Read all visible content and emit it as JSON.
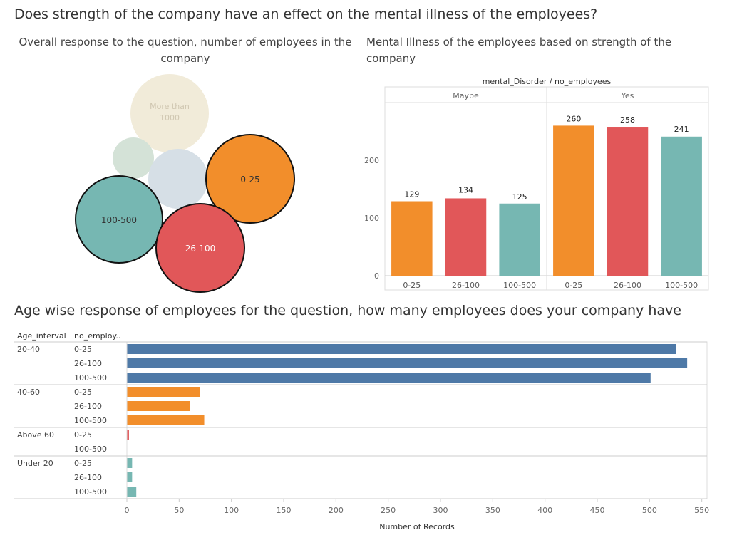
{
  "dashboard": {
    "title": "Does strength of the company have an effect on the mental illness of the employees?"
  },
  "bubble_chart": {
    "title_line1": "Overall response to the question, number of employees in the",
    "title_line2": "company"
  },
  "bar_chart": {
    "title_line1": "Mental Illness of the employees based on strength of the",
    "title_line2": "company"
  },
  "hbar_chart": {
    "title": "Age wise response of employees for the question, how many employees does your company have",
    "col_header_age": "Age_interval",
    "col_header_size": "no_employ.."
  },
  "colors": {
    "size_0_25": "#F28E2B",
    "size_26_100": "#E15759",
    "size_100_500": "#76B7B2",
    "size_more_1000": "#F1EBD9",
    "size_6_25_light": "#D4E2D7",
    "size_500_1000_light": "#D6DFE6",
    "age_20_40": "#4E79A7"
  },
  "chart_data": [
    {
      "type": "bubble",
      "bubbles": [
        {
          "label": "More than 1000",
          "color": "#F1EBD9",
          "outlined": false,
          "faded": true
        },
        {
          "label": "",
          "color": "#D4E2D7",
          "outlined": false,
          "faded": true
        },
        {
          "label": "",
          "color": "#D6DFE6",
          "outlined": false,
          "faded": true
        },
        {
          "label": "0-25",
          "color": "#F28E2B",
          "outlined": true,
          "faded": false
        },
        {
          "label": "100-500",
          "color": "#76B7B2",
          "outlined": true,
          "faded": false
        },
        {
          "label": "26-100",
          "color": "#E15759",
          "outlined": true,
          "faded": false
        }
      ]
    },
    {
      "type": "bar",
      "header": "mental_Disorder / no_employees",
      "groups": [
        "Maybe",
        "Yes"
      ],
      "categories": [
        "0-25",
        "26-100",
        "100-500"
      ],
      "series": [
        {
          "name": "Maybe",
          "values": [
            129,
            134,
            125
          ]
        },
        {
          "name": "Yes",
          "values": [
            260,
            258,
            241
          ]
        }
      ],
      "bar_colors": [
        "#F28E2B",
        "#E15759",
        "#76B7B2"
      ],
      "yticks": [
        0,
        100,
        200
      ],
      "ylim": [
        0,
        300
      ]
    },
    {
      "type": "bar",
      "orientation": "horizontal",
      "xlabel": "Number of Records",
      "xticks": [
        0,
        50,
        100,
        150,
        200,
        250,
        300,
        350,
        400,
        450,
        500,
        550
      ],
      "xlim": [
        0,
        555
      ],
      "groups": [
        {
          "age": "20-40",
          "color": "#4E79A7",
          "rows": [
            {
              "size": "0-25",
              "value": 525
            },
            {
              "size": "26-100",
              "value": 536
            },
            {
              "size": "100-500",
              "value": 501
            }
          ]
        },
        {
          "age": "40-60",
          "color": "#F28E2B",
          "rows": [
            {
              "size": "0-25",
              "value": 70
            },
            {
              "size": "26-100",
              "value": 60
            },
            {
              "size": "100-500",
              "value": 74
            }
          ]
        },
        {
          "age": "Above 60",
          "color": "#E15759",
          "rows": [
            {
              "size": "0-25",
              "value": 2
            },
            {
              "size": "100-500",
              "value": 0
            }
          ]
        },
        {
          "age": "Under 20",
          "color": "#76B7B2",
          "rows": [
            {
              "size": "0-25",
              "value": 5
            },
            {
              "size": "26-100",
              "value": 5
            },
            {
              "size": "100-500",
              "value": 9
            }
          ]
        }
      ]
    }
  ]
}
